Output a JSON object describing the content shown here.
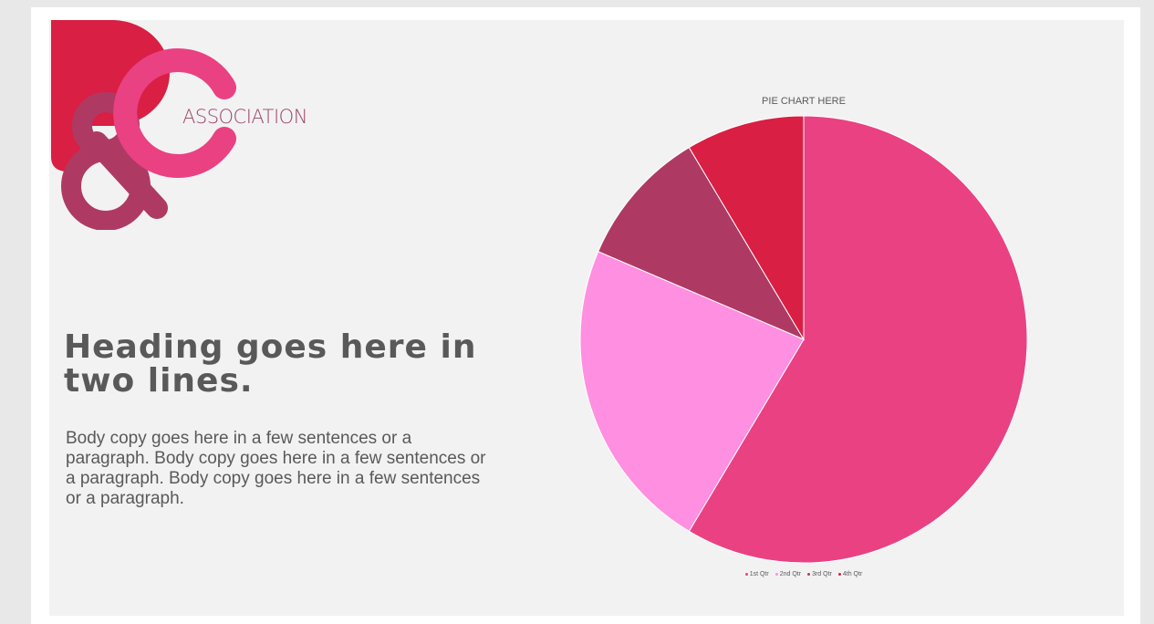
{
  "logo": {
    "word": "ASSOCIATION",
    "colors": {
      "p": "#d91f43",
      "ampersand": "#ae3a63",
      "c": "#ea4183"
    }
  },
  "content": {
    "heading": "Heading goes here in two lines.",
    "body": "Body copy goes here in a few sentences or a paragraph. Body copy goes here in a few sentences or a paragraph. Body copy goes here in a few sentences or a paragraph."
  },
  "chart_data": {
    "type": "pie",
    "title": "PIE CHART HERE",
    "categories": [
      "1st Qtr",
      "2nd Qtr",
      "3rd Qtr",
      "4th Qtr"
    ],
    "values": [
      8.2,
      3.2,
      1.4,
      1.2
    ],
    "colors": [
      "#ea4183",
      "#ff8fe0",
      "#ae3a63",
      "#d91f43"
    ],
    "legend_position": "bottom"
  }
}
